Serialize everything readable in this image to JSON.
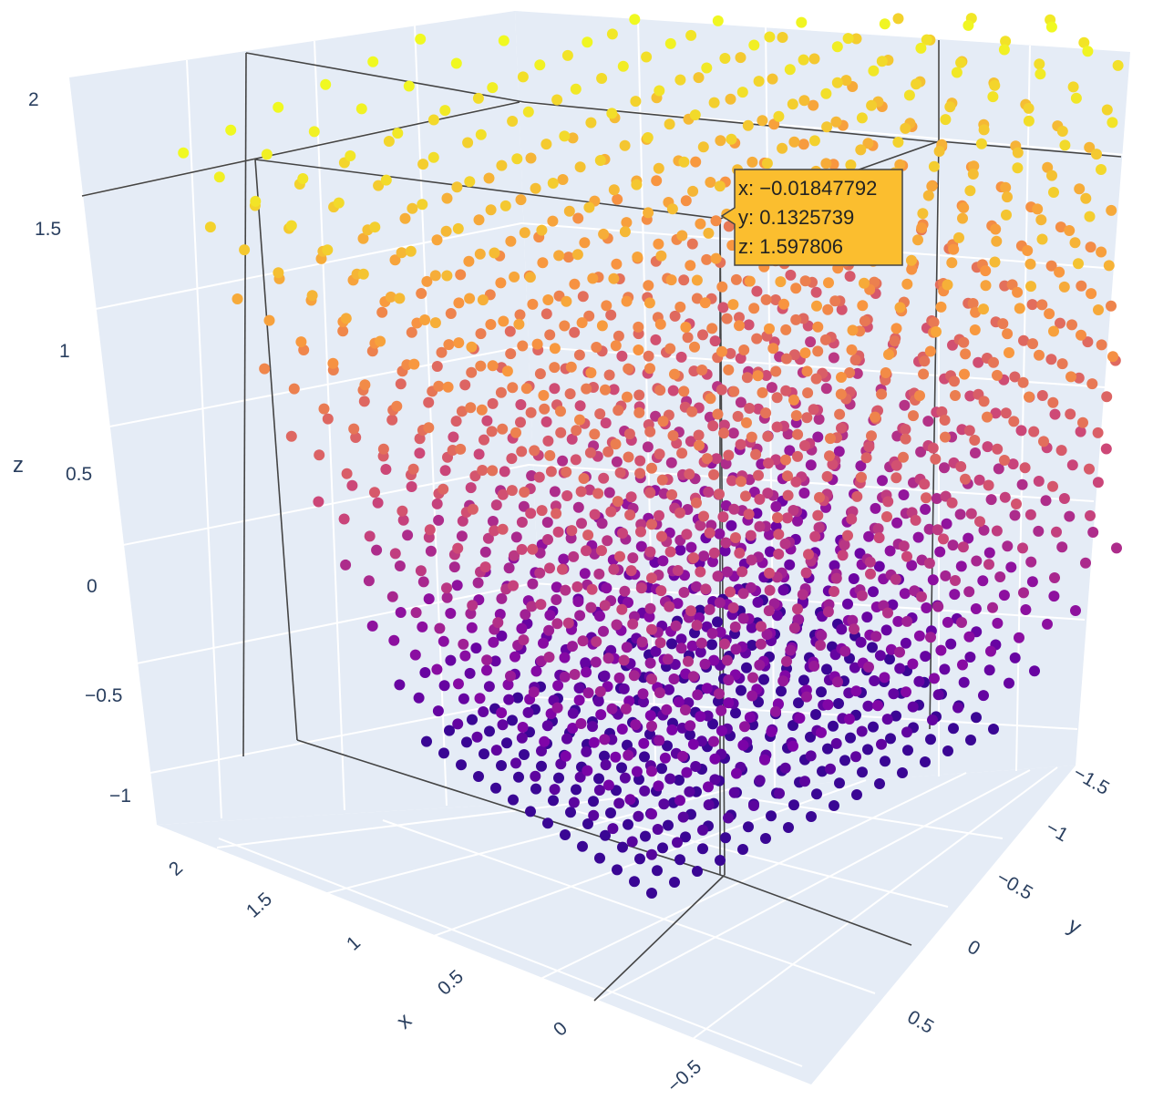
{
  "chart_data": {
    "type": "scatter3d",
    "axes": {
      "x": {
        "title": "x",
        "ticks": [
          "2",
          "1.5",
          "1",
          "0.5",
          "0",
          "−0.5"
        ],
        "range": [
          -0.75,
          2.25
        ]
      },
      "y": {
        "title": "y",
        "ticks": [
          "−1.5",
          "−1",
          "−0.5",
          "0",
          "0.5"
        ],
        "range": [
          -1.75,
          0.75
        ]
      },
      "z": {
        "title": "z",
        "ticks": [
          "2",
          "1.5",
          "1",
          "0.5",
          "0",
          "−0.5",
          "−1"
        ],
        "range": [
          -1.2,
          2.1
        ]
      }
    },
    "grid": true,
    "point_grid": {
      "u_count": 16,
      "v_count": 14,
      "layers": 10
    },
    "colorscale": [
      "#0d0887",
      "#7e03a8",
      "#cc4778",
      "#f89540",
      "#f0f921"
    ],
    "background_color": "#e5ecf6",
    "hover": {
      "x_label": "x: −0.01847792",
      "y_label": "y: 0.1325739",
      "z_label": "z: 1.597806",
      "color": "#fbbe2f"
    }
  }
}
